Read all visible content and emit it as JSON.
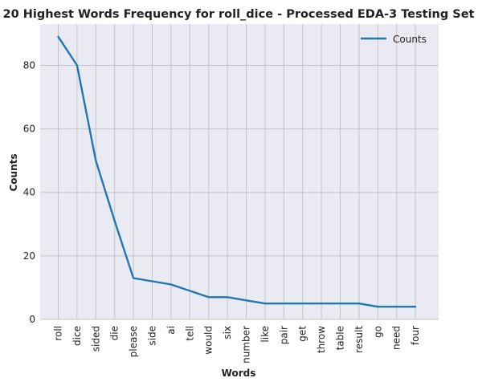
{
  "chart_data": {
    "type": "line",
    "title": "20 Highest Words Frequency for roll_dice - Processed EDA-3 Testing Set",
    "xlabel": "Words",
    "ylabel": "Counts",
    "categories": [
      "roll",
      "dice",
      "sided",
      "die",
      "please",
      "side",
      "ai",
      "tell",
      "would",
      "six",
      "number",
      "like",
      "pair",
      "get",
      "throw",
      "table",
      "result",
      "go",
      "need",
      "four"
    ],
    "series": [
      {
        "name": "Counts",
        "values": [
          89,
          80,
          50,
          31,
          13,
          12,
          11,
          9,
          7,
          7,
          6,
          5,
          5,
          5,
          5,
          5,
          5,
          4,
          4,
          4
        ],
        "color": "#1f77b4"
      }
    ],
    "ylim": [
      0,
      93
    ],
    "yticks": [
      0,
      20,
      40,
      60,
      80
    ],
    "grid": true,
    "legend_position": "top-right",
    "background": "#eaeaf2",
    "grid_color": "#c4c4c8"
  }
}
